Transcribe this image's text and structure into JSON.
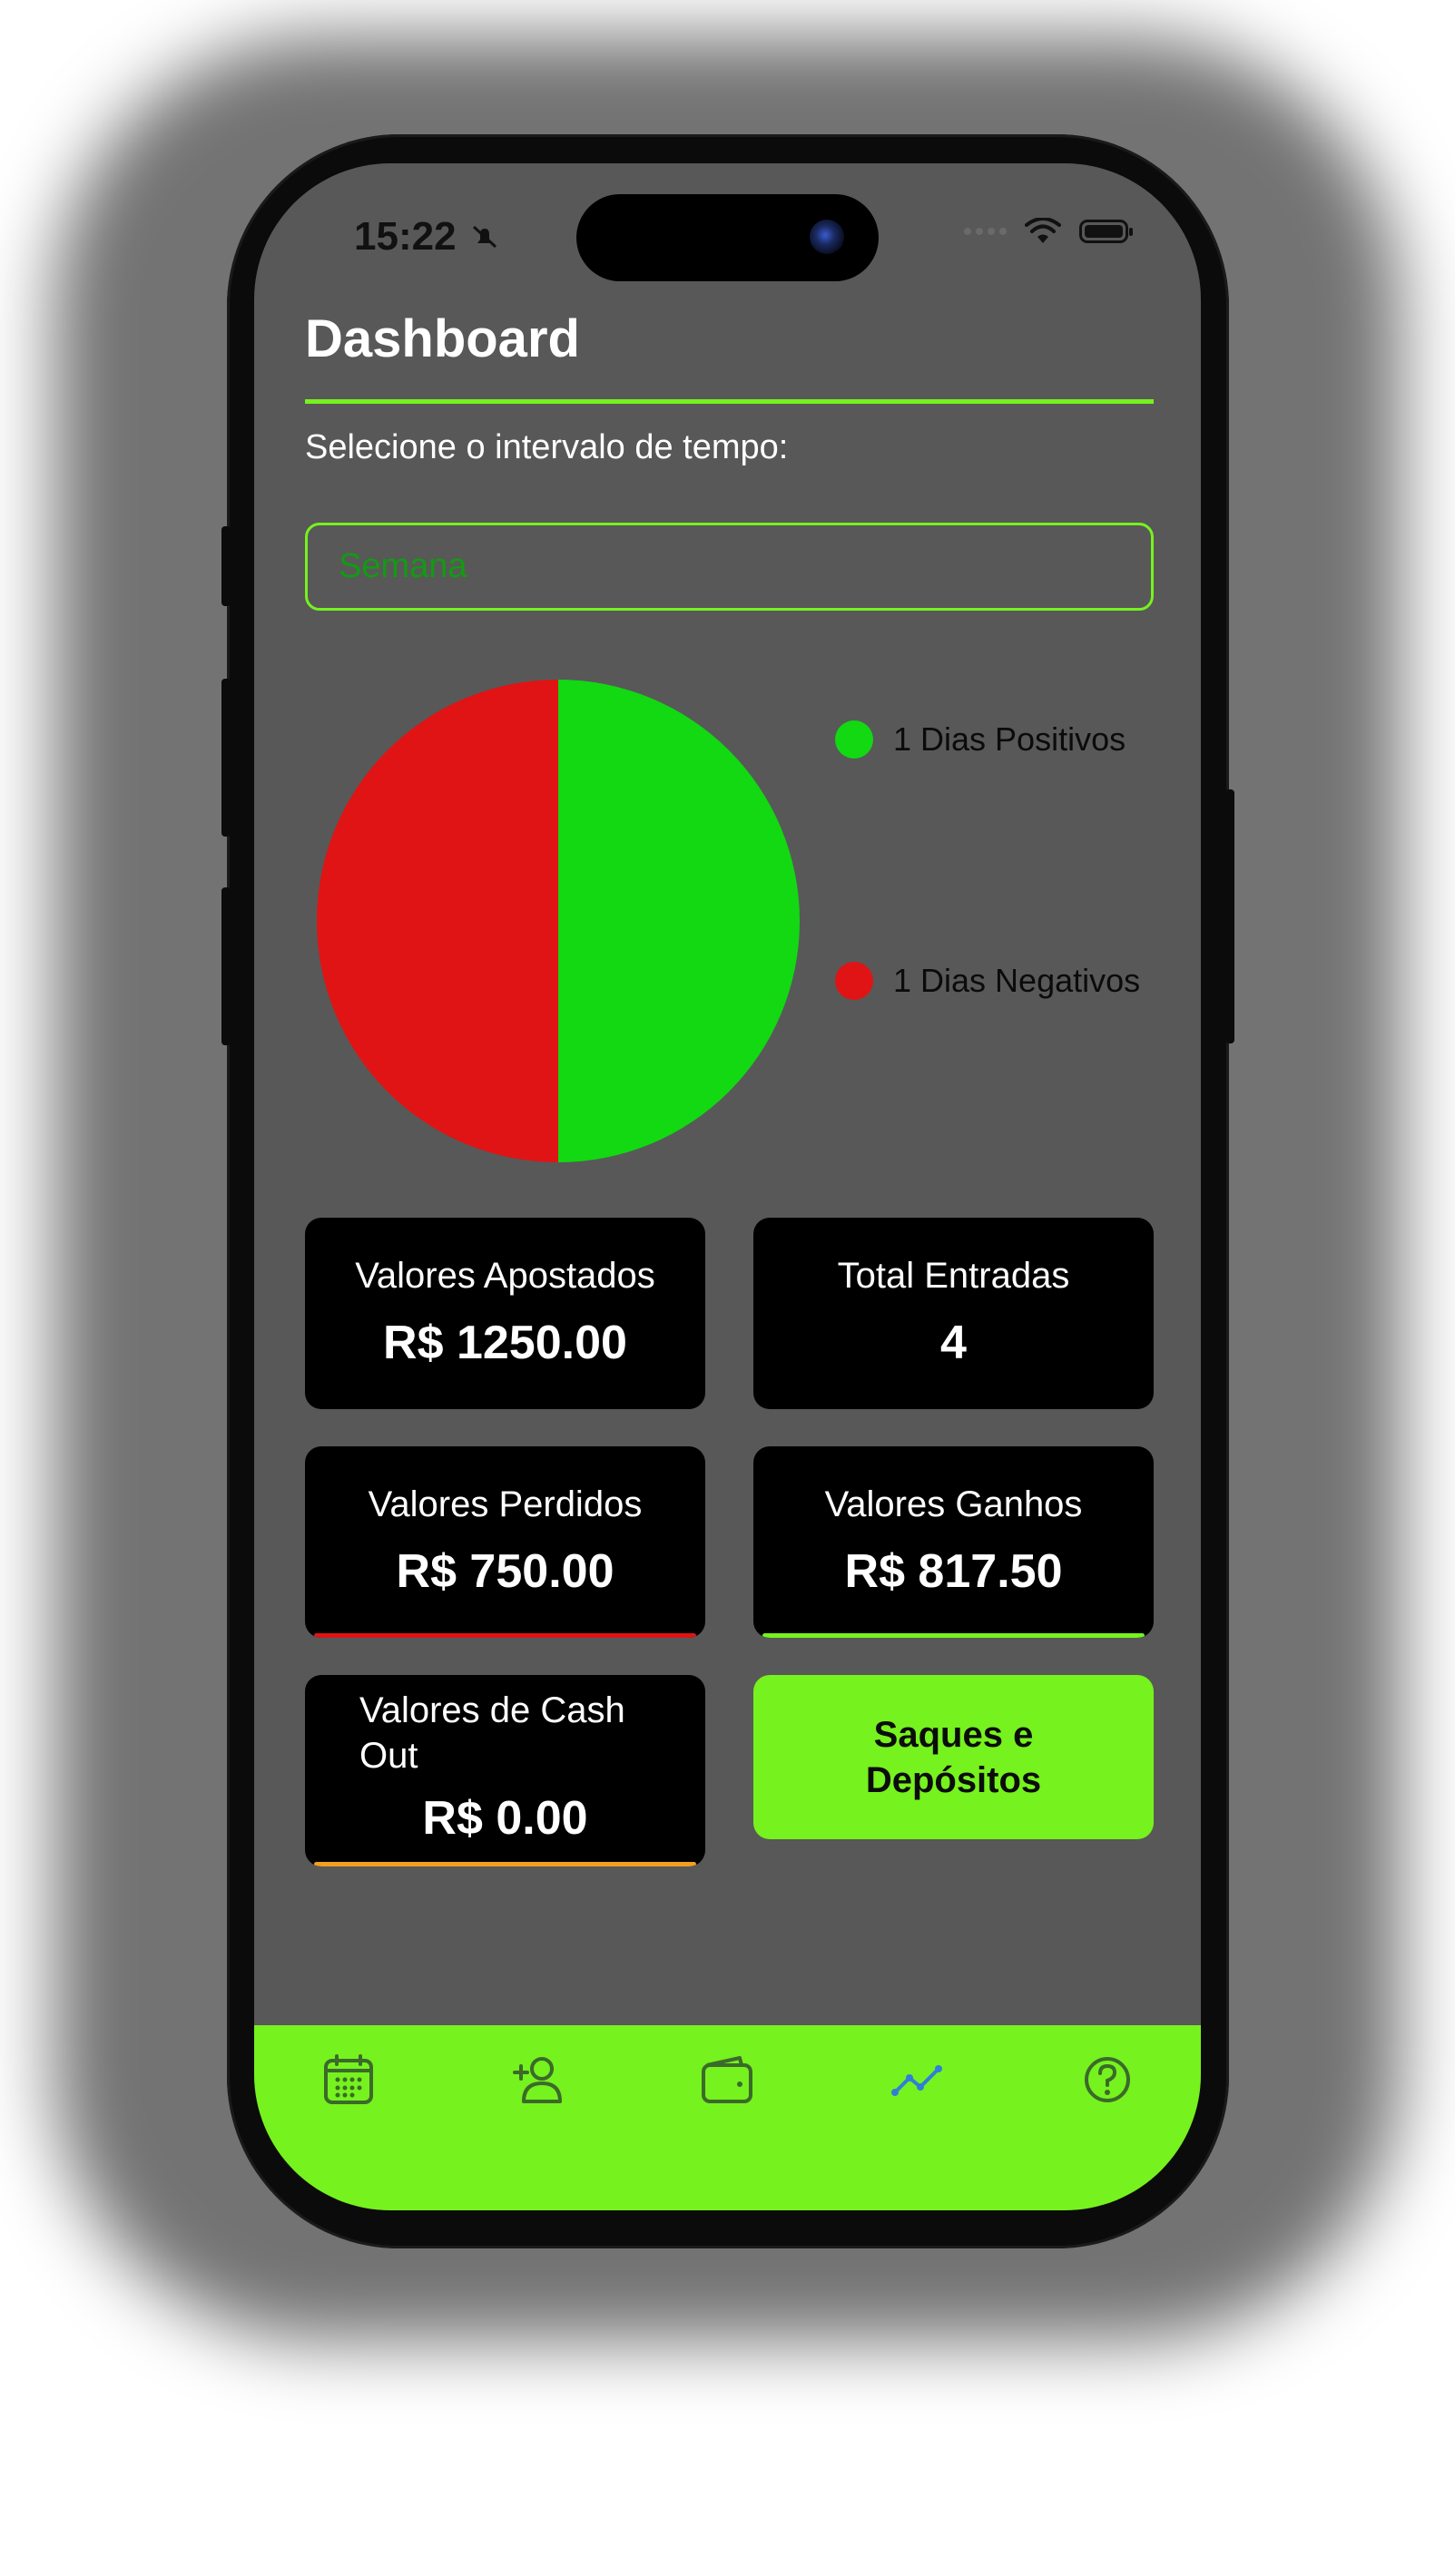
{
  "status_bar": {
    "time": "15:22"
  },
  "header": {
    "title": "Dashboard",
    "subtitle": "Selecione o intervalo de tempo:"
  },
  "filter": {
    "selected": "Semana"
  },
  "chart_data": {
    "type": "pie",
    "slices": [
      {
        "label": "1 Dias Positivos",
        "value": 1,
        "color": "#12d912"
      },
      {
        "label": "1 Dias Negativos",
        "value": 1,
        "color": "#e01414"
      }
    ]
  },
  "cards": {
    "apostados": {
      "label": "Valores Apostados",
      "value": "R$ 1250.00"
    },
    "entradas": {
      "label": "Total Entradas",
      "value": "4"
    },
    "perdidos": {
      "label": "Valores Perdidos",
      "value": "R$ 750.00",
      "accent": "#e01414"
    },
    "ganhos": {
      "label": "Valores Ganhos",
      "value": "R$ 817.50",
      "accent": "#76f21e"
    },
    "cashout": {
      "label": "Valores de Cash Out",
      "value": "R$ 0.00",
      "accent": "#f0a020"
    }
  },
  "actions": {
    "saques_label": "Saques e Depósitos"
  },
  "tabbar": {
    "items": [
      {
        "icon": "calendar-icon",
        "active": false
      },
      {
        "icon": "add-user-icon",
        "active": false
      },
      {
        "icon": "wallet-icon",
        "active": false
      },
      {
        "icon": "chart-line-icon",
        "active": true
      },
      {
        "icon": "help-icon",
        "active": false
      }
    ],
    "active_color": "#2f7fd8",
    "inactive_color": "#3b6a2a"
  },
  "colors": {
    "accent": "#76f21e",
    "background": "#585858",
    "card": "#000000"
  }
}
